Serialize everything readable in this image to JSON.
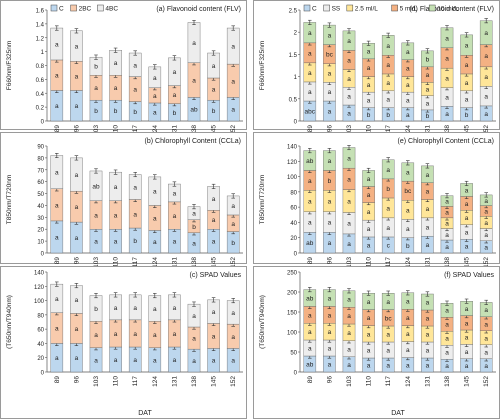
{
  "figure": {
    "colors": {
      "C": "#bdd7ee",
      "2BC": "#f8cbad",
      "4BC": "#ededed",
      "SS": "#ededed",
      "2.5": "#ffe699",
      "5": "#f4b183",
      "10": "#c5e0b4",
      "border": "#222222",
      "errbar": "#333333"
    },
    "x_axis_label": "DAT"
  },
  "chart_data": [
    {
      "id": "a",
      "type": "bar",
      "stacked": true,
      "title": "(a) Flavonoid content (FLV)",
      "ylabel": "F660nm/F325nm",
      "xlabel": "",
      "ylim": [
        0,
        1.6
      ],
      "yticks": [
        "0",
        "0.2",
        "0.4",
        "0.6",
        "0.8",
        "1",
        "1.2",
        "1.4",
        "1.6"
      ],
      "legend": [
        "C",
        "2BC",
        "4BC"
      ],
      "legend_position": "top-left",
      "categories": [
        "89",
        "96",
        "103",
        "110",
        "117",
        "124",
        "131",
        "138",
        "145",
        "152"
      ],
      "series": [
        {
          "name": "C",
          "values": [
            0.44,
            0.44,
            0.3,
            0.3,
            0.28,
            0.26,
            0.25,
            0.34,
            0.3,
            0.34
          ],
          "labels": [
            "a",
            "a",
            "b",
            "b",
            "b",
            "a",
            "b",
            "ab",
            "b",
            "a"
          ]
        },
        {
          "name": "2BC",
          "values": [
            0.44,
            0.42,
            0.36,
            0.36,
            0.36,
            0.22,
            0.26,
            0.5,
            0.32,
            0.48
          ],
          "labels": [
            "a",
            "a",
            "a",
            "a",
            "a",
            "a",
            "a",
            "a",
            "a",
            "a"
          ]
        },
        {
          "name": "4BC",
          "values": [
            0.46,
            0.44,
            0.26,
            0.36,
            0.34,
            0.3,
            0.4,
            0.58,
            0.36,
            0.52
          ],
          "labels": [
            "a",
            "a",
            "b",
            "a",
            "a",
            "a",
            "a",
            "a",
            "a",
            "a"
          ]
        }
      ]
    },
    {
      "id": "b",
      "type": "bar",
      "stacked": true,
      "title": "(b) Chlorophyll Content (CCLa)",
      "ylabel": "T850nm/T720nm",
      "xlabel": "",
      "ylim": [
        0,
        90
      ],
      "yticks": [
        "0",
        "10",
        "20",
        "30",
        "40",
        "50",
        "60",
        "70",
        "80",
        "90"
      ],
      "categories": [
        "89",
        "96",
        "103",
        "110",
        "117",
        "124",
        "131",
        "138",
        "145",
        "152"
      ],
      "series": [
        {
          "name": "C",
          "values": [
            27,
            26,
            20,
            20,
            21,
            19,
            20,
            17,
            20,
            18
          ],
          "labels": [
            "a",
            "a",
            "a",
            "a",
            "b",
            "a",
            "a",
            "a",
            "a",
            "b"
          ]
        },
        {
          "name": "2BC",
          "values": [
            27,
            26,
            24,
            24,
            24,
            21,
            23,
            11,
            16,
            14
          ],
          "labels": [
            "a",
            "a",
            "a",
            "a",
            "a",
            "a",
            "a",
            "b",
            "a",
            "a"
          ]
        },
        {
          "name": "4BC",
          "values": [
            28,
            28,
            25,
            24,
            21,
            24,
            15,
            11,
            20,
            16
          ],
          "labels": [
            "a",
            "a",
            "ab",
            "a",
            "a",
            "a",
            "a",
            "a",
            "a",
            "a"
          ]
        }
      ]
    },
    {
      "id": "c",
      "type": "bar",
      "stacked": true,
      "title": "(c) SPAD Values",
      "ylabel": "(T650nm/T940nm)",
      "xlabel": "DAT",
      "ylim": [
        0,
        140
      ],
      "yticks": [
        "0",
        "20",
        "40",
        "60",
        "80",
        "100",
        "120",
        "140"
      ],
      "categories": [
        "89",
        "96",
        "103",
        "110",
        "117",
        "124",
        "131",
        "138",
        "145",
        "152"
      ],
      "series": [
        {
          "name": "C",
          "values": [
            40,
            40,
            34,
            35,
            35,
            34,
            35,
            32,
            33,
            33
          ],
          "labels": [
            "a",
            "a",
            "a",
            "a",
            "a",
            "a",
            "a",
            "a",
            "a",
            "a"
          ]
        },
        {
          "name": "2BC",
          "values": [
            43,
            42,
            37,
            38,
            38,
            37,
            38,
            31,
            35,
            34
          ],
          "labels": [
            "a",
            "a",
            "a",
            "a",
            "a",
            "a",
            "a",
            "a",
            "a",
            "a"
          ]
        },
        {
          "name": "4BC",
          "values": [
            40,
            39,
            36,
            35,
            35,
            36,
            35,
            32,
            33,
            33
          ],
          "labels": [
            "a",
            "a",
            "b",
            "a",
            "a",
            "a",
            "a",
            "a",
            "a",
            "a"
          ]
        }
      ]
    },
    {
      "id": "d",
      "type": "bar",
      "stacked": true,
      "title": "(d) Flavonoid content (FLV)",
      "ylabel": "F660nm/F325nm",
      "xlabel": "",
      "ylim": [
        0,
        2.5
      ],
      "yticks": [
        "0",
        "0.5",
        "1",
        "1.5",
        "2",
        "2.5"
      ],
      "legend": [
        "C",
        "SS",
        "2.5 ml/L",
        "5 ml/L",
        "10 ml/L"
      ],
      "legend_position": "top-left",
      "categories": [
        "89",
        "96",
        "103",
        "110",
        "117",
        "124",
        "131",
        "138",
        "145",
        "152"
      ],
      "series": [
        {
          "name": "C",
          "values": [
            0.45,
            0.45,
            0.36,
            0.3,
            0.3,
            0.3,
            0.25,
            0.33,
            0.3,
            0.34
          ],
          "labels": [
            "abc",
            "a",
            "a",
            "b",
            "b",
            "a",
            "b",
            "a",
            "b",
            "a"
          ]
        },
        {
          "name": "SS",
          "values": [
            0.43,
            0.42,
            0.4,
            0.35,
            0.38,
            0.35,
            0.32,
            0.42,
            0.38,
            0.44
          ],
          "labels": [
            "a",
            "a",
            "a",
            "a",
            "a",
            "a",
            "a",
            "a",
            "a",
            "a"
          ]
        },
        {
          "name": "2.5 ml/L",
          "values": [
            0.43,
            0.42,
            0.4,
            0.35,
            0.38,
            0.35,
            0.3,
            0.44,
            0.38,
            0.44
          ],
          "labels": [
            "a",
            "a",
            "a",
            "a",
            "a",
            "a",
            "a",
            "a",
            "a",
            "a"
          ]
        },
        {
          "name": "5 ml/L",
          "values": [
            0.45,
            0.43,
            0.43,
            0.4,
            0.42,
            0.38,
            0.35,
            0.46,
            0.42,
            0.5
          ],
          "labels": [
            "a",
            "bc",
            "a",
            "a",
            "a",
            "a",
            "a",
            "a",
            "a",
            "a"
          ]
        },
        {
          "name": "10 ml/L",
          "values": [
            0.46,
            0.44,
            0.44,
            0.35,
            0.45,
            0.38,
            0.36,
            0.45,
            0.46,
            0.54
          ],
          "labels": [
            "a",
            "a",
            "a",
            "a",
            "a",
            "a",
            "b",
            "a",
            "a",
            "a"
          ]
        }
      ]
    },
    {
      "id": "e",
      "type": "bar",
      "stacked": true,
      "title": "(e) Chlorophyll Content (CCLa)",
      "ylabel": "T850nm/T720nm",
      "xlabel": "",
      "ylim": [
        0,
        140
      ],
      "yticks": [
        "0",
        "20",
        "40",
        "60",
        "80",
        "100",
        "120",
        "140"
      ],
      "categories": [
        "89",
        "96",
        "103",
        "110",
        "117",
        "124",
        "131",
        "138",
        "145",
        "152"
      ],
      "series": [
        {
          "name": "C",
          "values": [
            27,
            27,
            25,
            21,
            21,
            20,
            22,
            17,
            18,
            16
          ],
          "labels": [
            "ab",
            "a",
            "a",
            "a",
            "c",
            "b",
            "a",
            "a",
            "a",
            "a"
          ]
        },
        {
          "name": "SS",
          "values": [
            27,
            27,
            28,
            22,
            25,
            24,
            24,
            15,
            19,
            16
          ],
          "labels": [
            "a",
            "a",
            "a",
            "a",
            "a",
            "a",
            "a",
            "a",
            "a",
            "a"
          ]
        },
        {
          "name": "2.5 ml/L",
          "values": [
            28,
            28,
            30,
            23,
            26,
            25,
            24,
            14,
            19,
            16
          ],
          "labels": [
            "a",
            "a",
            "a",
            "a",
            "a",
            "a",
            "a",
            "a",
            "a",
            "a"
          ]
        },
        {
          "name": "5 ml/L",
          "values": [
            26,
            26,
            28,
            21,
            25,
            25,
            22,
            15,
            18,
            14
          ],
          "labels": [
            "a",
            "b",
            "a",
            "a",
            "b",
            "bc",
            "a",
            "a",
            "a",
            "a"
          ]
        },
        {
          "name": "10 ml/L",
          "values": [
            26,
            26,
            27,
            21,
            25,
            24,
            22,
            14,
            17,
            14
          ],
          "labels": [
            "ab",
            "a",
            "a",
            "a",
            "a",
            "a",
            "a",
            "a",
            "a",
            "a"
          ]
        }
      ]
    },
    {
      "id": "f",
      "type": "bar",
      "stacked": true,
      "title": "(f) SPAD Values",
      "ylabel": "(T650nm/T940nm)",
      "xlabel": "DAT",
      "ylim": [
        0,
        250
      ],
      "yticks": [
        "0",
        "50",
        "100",
        "150",
        "200",
        "250"
      ],
      "categories": [
        "89",
        "96",
        "103",
        "110",
        "117",
        "124",
        "131",
        "138",
        "145",
        "152"
      ],
      "series": [
        {
          "name": "C",
          "values": [
            40,
            40,
            38,
            35,
            35,
            36,
            35,
            32,
            33,
            33
          ],
          "labels": [
            "ab",
            "a",
            "a",
            "a",
            "a",
            "a",
            "a",
            "a",
            "a",
            "a"
          ]
        },
        {
          "name": "SS",
          "values": [
            40,
            40,
            40,
            40,
            40,
            40,
            40,
            35,
            36,
            35
          ],
          "labels": [
            "a",
            "a",
            "a",
            "a",
            "a",
            "a",
            "a",
            "a",
            "a",
            "a"
          ]
        },
        {
          "name": "2.5 ml/L",
          "values": [
            42,
            42,
            42,
            41,
            40,
            40,
            40,
            35,
            36,
            35
          ],
          "labels": [
            "a",
            "a",
            "a",
            "a",
            "a",
            "a",
            "a",
            "a",
            "a",
            "a"
          ]
        },
        {
          "name": "5 ml/L",
          "values": [
            42,
            42,
            42,
            40,
            41,
            41,
            40,
            35,
            36,
            35
          ],
          "labels": [
            "a",
            "a",
            "a",
            "a",
            "bc",
            "a",
            "a",
            "a",
            "a",
            "a"
          ]
        },
        {
          "name": "10 ml/L",
          "values": [
            42,
            42,
            41,
            41,
            41,
            41,
            40,
            35,
            36,
            36
          ],
          "labels": [
            "ab",
            "a",
            "a",
            "a",
            "a",
            "a",
            "a",
            "a",
            "a",
            "a"
          ]
        }
      ]
    }
  ]
}
